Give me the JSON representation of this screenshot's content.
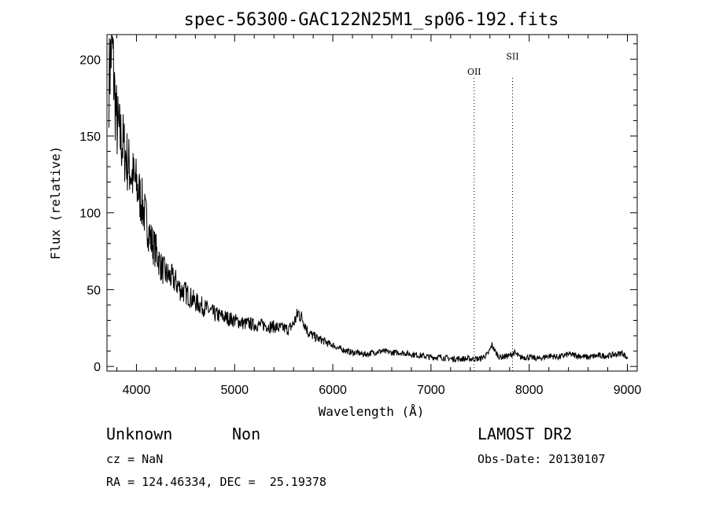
{
  "chart_data": {
    "type": "line",
    "title": "spec-56300-GAC122N25M1_sp06-192.fits",
    "xlabel": "Wavelength (Å)",
    "ylabel": "Flux (relative)",
    "xlim": [
      3700,
      9100
    ],
    "ylim": [
      -3,
      216
    ],
    "x_ticks": [
      4000,
      5000,
      6000,
      7000,
      8000,
      9000
    ],
    "y_ticks": [
      0,
      50,
      100,
      150,
      200
    ],
    "grid": false,
    "series": [
      {
        "x": [
          3720,
          3750,
          3780,
          3800,
          3830,
          3860,
          3900,
          3950,
          4000,
          4050,
          4100,
          4150,
          4200,
          4250,
          4300,
          4350,
          4400,
          4450,
          4500,
          4550,
          4600,
          4650,
          4700,
          4750,
          4800,
          4850,
          4900,
          4950,
          5000,
          5050,
          5100,
          5150,
          5200,
          5250,
          5300,
          5350,
          5400,
          5450,
          5500,
          5550,
          5600,
          5650,
          5700,
          5750,
          5800,
          5850,
          5900,
          5950,
          6000,
          6050,
          6100,
          6150,
          6200,
          6250,
          6300,
          6350,
          6400,
          6500,
          6600,
          6700,
          6800,
          6900,
          7000,
          7100,
          7200,
          7300,
          7400,
          7500,
          7580,
          7620,
          7660,
          7700,
          7800,
          7850,
          7900,
          8000,
          8100,
          8200,
          8300,
          8400,
          8500,
          8600,
          8700,
          8800,
          8900,
          8950,
          9000
        ],
        "y": [
          185,
          212,
          175,
          158,
          150,
          145,
          135,
          125,
          118,
          108,
          95,
          82,
          75,
          65,
          60,
          58,
          55,
          50,
          48,
          45,
          42,
          40,
          38,
          36,
          34,
          33,
          32,
          31,
          30,
          29,
          28,
          28,
          27,
          27,
          27,
          26,
          26,
          25,
          25,
          24,
          28,
          35,
          30,
          22,
          20,
          18,
          17,
          15,
          14,
          12,
          11,
          10,
          9,
          9,
          8,
          8,
          9,
          10,
          9,
          9,
          8,
          7,
          6,
          6,
          5,
          5,
          5,
          5,
          8,
          14,
          9,
          6,
          7,
          9,
          6,
          6,
          5,
          7,
          6,
          8,
          7,
          6,
          7,
          7,
          8,
          9,
          5
        ]
      }
    ],
    "annotations": [
      {
        "label": "OII",
        "x": 7440,
        "label_y": 190
      },
      {
        "label": "SII",
        "x": 7830,
        "label_y": 200
      }
    ]
  },
  "footer": {
    "class_label": "Unknown",
    "subclass_label": "Non",
    "survey": "LAMOST DR2",
    "cz": "cz = NaN",
    "obs_date": "Obs-Date: 20130107",
    "coords": "RA = 124.46334, DEC =  25.19378"
  }
}
